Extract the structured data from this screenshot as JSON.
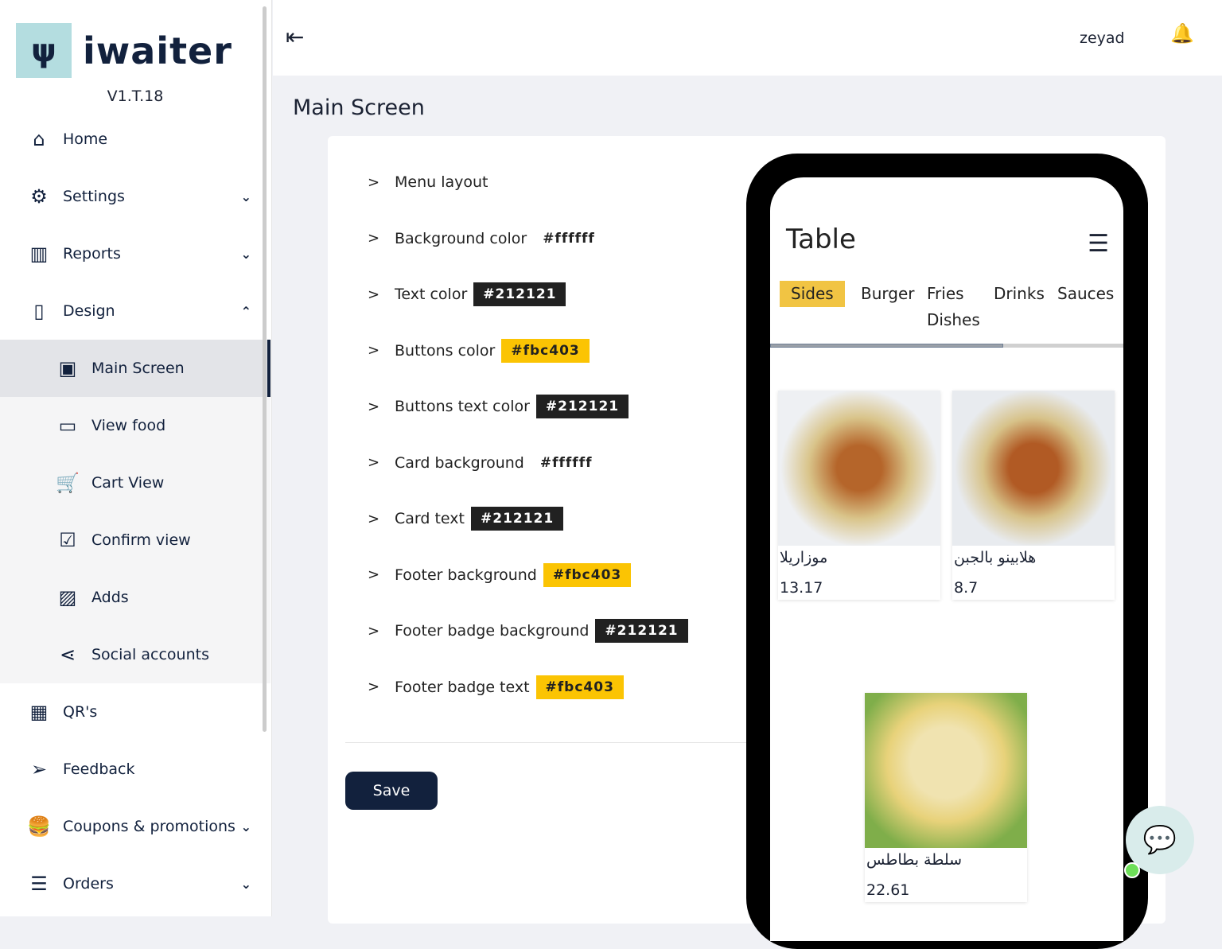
{
  "brand": {
    "name": "iwaiter",
    "version": "V1.T.18"
  },
  "sidebar": {
    "items": [
      {
        "label": "Home",
        "icon": "home-icon",
        "glyph": "⌂"
      },
      {
        "label": "Settings",
        "icon": "gear-icon",
        "glyph": "⚙",
        "chev": "⌄"
      },
      {
        "label": "Reports",
        "icon": "books-icon",
        "glyph": "▥",
        "chev": "⌄"
      },
      {
        "label": "Design",
        "icon": "phone-icon",
        "glyph": "▯",
        "chev": "⌃"
      },
      {
        "label": "Main Screen",
        "icon": "tablet-user-icon",
        "glyph": "▣"
      },
      {
        "label": "View food",
        "icon": "monitor-icon",
        "glyph": "▭"
      },
      {
        "label": "Cart View",
        "icon": "cart-icon",
        "glyph": "🛒"
      },
      {
        "label": "Confirm view",
        "icon": "check-square-icon",
        "glyph": "☑"
      },
      {
        "label": "Adds",
        "icon": "images-icon",
        "glyph": "▨"
      },
      {
        "label": "Social accounts",
        "icon": "share-icon",
        "glyph": "⋖"
      },
      {
        "label": "QR's",
        "icon": "qr-icon",
        "glyph": "▦"
      },
      {
        "label": "Feedback",
        "icon": "send-icon",
        "glyph": "➢"
      },
      {
        "label": "Coupons & promotions",
        "icon": "food-icon",
        "glyph": "🍔",
        "chev": "⌄"
      },
      {
        "label": "Orders",
        "icon": "list-icon",
        "glyph": "☰",
        "chev": "⌄"
      }
    ]
  },
  "header": {
    "menu_glyph": "⇤",
    "user": "zeyad",
    "bell": "🔔"
  },
  "page": {
    "title": "Main Screen"
  },
  "settings": [
    {
      "label": "Menu layout",
      "value": ""
    },
    {
      "label": "Background color",
      "value": "#ffffff"
    },
    {
      "label": "Text color",
      "value": "#212121"
    },
    {
      "label": "Buttons color",
      "value": "#fbc403"
    },
    {
      "label": "Buttons text color",
      "value": "#212121"
    },
    {
      "label": "Card background",
      "value": "#ffffff"
    },
    {
      "label": "Card text",
      "value": "#212121"
    },
    {
      "label": "Footer background",
      "value": "#fbc403"
    },
    {
      "label": "Footer badge background",
      "value": "#212121"
    },
    {
      "label": "Footer badge text",
      "value": "#fbc403"
    }
  ],
  "save_label": "Save",
  "preview": {
    "title": "Table",
    "menu_glyph": "☰",
    "tabs": [
      "Sides",
      "Burger",
      "Fries\nDishes",
      "Drinks",
      "Sauces"
    ],
    "scroll_progress": 0.66,
    "foods": [
      {
        "name": "موزاريلا",
        "price": "13.17"
      },
      {
        "name": "هلابينو بالجبن",
        "price": "8.7"
      },
      {
        "name": "سلطة بطاطس",
        "price": "22.61"
      }
    ]
  },
  "chat_glyph": "💬"
}
